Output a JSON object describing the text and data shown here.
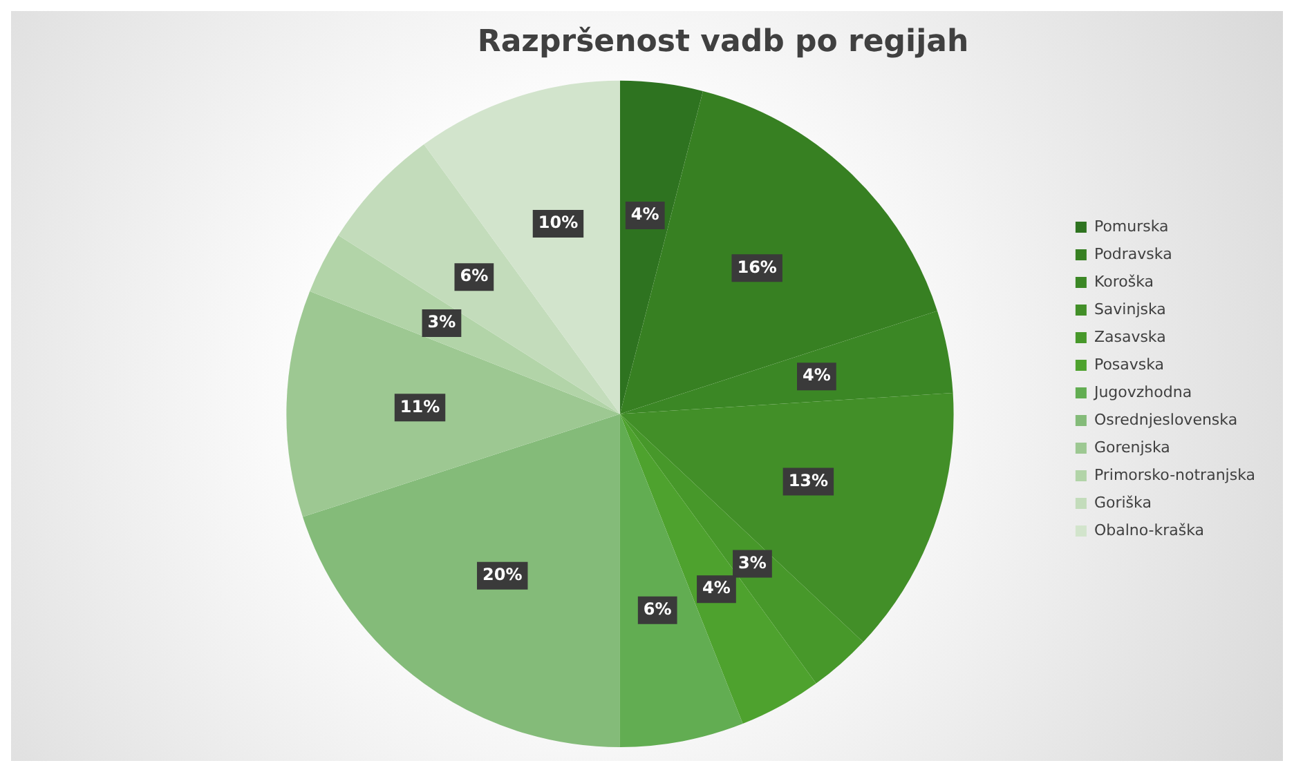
{
  "chart_data": {
    "type": "pie",
    "title": "Razpršenost vadb po regijah",
    "categories": [
      "Pomurska",
      "Podravska",
      "Koroška",
      "Savinjska",
      "Zasavska",
      "Posavska",
      "Jugovzhodna",
      "Osrednjeslovenska",
      "Gorenjska",
      "Primorsko-notranjska",
      "Goriška",
      "Obalno-kraška"
    ],
    "values": [
      4,
      16,
      4,
      13,
      3,
      4,
      6,
      20,
      11,
      3,
      6,
      10
    ],
    "value_labels": [
      "4%",
      "16%",
      "4%",
      "13%",
      "3%",
      "4%",
      "6%",
      "20%",
      "11%",
      "3%",
      "6%",
      "10%"
    ],
    "colors": [
      "#2e7320",
      "#378022",
      "#3b8725",
      "#428f28",
      "#47982a",
      "#4ea22e",
      "#62ad52",
      "#84bb79",
      "#9dc892",
      "#b2d4a8",
      "#c3dcbb",
      "#d2e4cc"
    ],
    "legend": "right"
  }
}
